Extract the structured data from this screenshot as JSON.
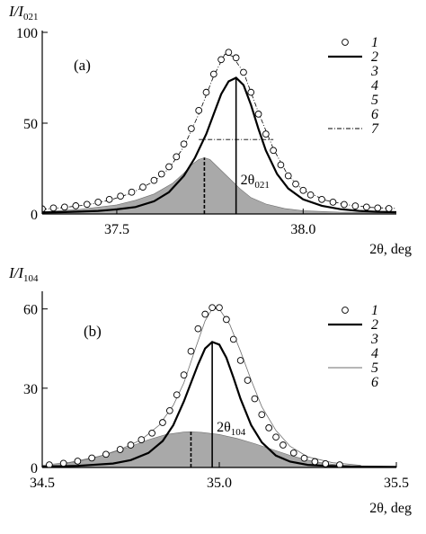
{
  "colors": {
    "line": "#000000",
    "fill": "#a9a9a9",
    "thin": "#6e6e6e",
    "background": "#ffffff"
  },
  "chart_data": [
    {
      "type": "line",
      "panel_label": "(a)",
      "ylabel_main": "I/I",
      "ylabel_sub": "021",
      "xlabel": "2θ, deg",
      "xlim": [
        37.3,
        38.25
      ],
      "ylim": [
        0,
        100
      ],
      "x_ticks": [
        37.5,
        38.0
      ],
      "x_tick_labels": [
        "37.5",
        "38.0"
      ],
      "y_ticks": [
        0,
        50,
        100
      ],
      "y_tick_labels": [
        "0",
        "50",
        "100"
      ],
      "annotation_main": "2θ",
      "annotation_sub": "021",
      "legend": [
        "1",
        "2",
        "3",
        "4",
        "5",
        "6",
        "7"
      ],
      "fwhm_level": 41,
      "fwhm_x": [
        37.72,
        37.92
      ],
      "peak_line_x": 37.82,
      "peak_line_y": 75,
      "dashed_line_x": 37.735,
      "dashed_line_y": 31,
      "series": [
        {
          "name": "1",
          "x": [
            37.3,
            37.33,
            37.36,
            37.39,
            37.42,
            37.45,
            37.48,
            37.51,
            37.54,
            37.57,
            37.6,
            37.62,
            37.64,
            37.66,
            37.68,
            37.7,
            37.72,
            37.74,
            37.76,
            37.78,
            37.8,
            37.82,
            37.84,
            37.86,
            37.88,
            37.9,
            37.92,
            37.94,
            37.96,
            37.98,
            38.0,
            38.02,
            38.05,
            38.08,
            38.11,
            38.14,
            38.17,
            38.2,
            38.23
          ],
          "values": [
            2.8,
            3.3,
            3.8,
            4.5,
            5.3,
            6.5,
            8.0,
            9.8,
            12.0,
            14.8,
            18.5,
            22.0,
            26.0,
            31.5,
            38.5,
            47.0,
            57.0,
            67.0,
            77.0,
            85.0,
            89.0,
            86.0,
            78.0,
            67.0,
            55.0,
            44.0,
            35.0,
            27.0,
            21.0,
            16.5,
            13.0,
            10.5,
            8.0,
            6.5,
            5.2,
            4.4,
            3.8,
            3.3,
            3.0
          ]
        },
        {
          "name": "2",
          "x": [
            37.3,
            37.35,
            37.4,
            37.45,
            37.5,
            37.55,
            37.6,
            37.64,
            37.68,
            37.71,
            37.74,
            37.76,
            37.78,
            37.8,
            37.82,
            37.84,
            37.86,
            37.88,
            37.9,
            37.93,
            37.96,
            38.0,
            38.05,
            38.1,
            38.15,
            38.2,
            38.25
          ],
          "values": [
            0.8,
            1.0,
            1.3,
            1.7,
            2.5,
            3.8,
            7.0,
            12.0,
            21.0,
            31.0,
            44.0,
            55.0,
            66.0,
            73.0,
            75.0,
            71.0,
            60.0,
            47.0,
            35.0,
            22.0,
            14.0,
            8.0,
            4.5,
            2.6,
            1.7,
            1.2,
            1.0
          ]
        },
        {
          "name": "3",
          "x": [
            37.3,
            37.4,
            37.5,
            37.55,
            37.6,
            37.65,
            37.68,
            37.7,
            37.72,
            37.735,
            37.75,
            37.77,
            37.8,
            37.83,
            37.86,
            37.9,
            37.95,
            38.0,
            38.1,
            38.25
          ],
          "values": [
            1.2,
            2.5,
            5.0,
            7.5,
            11.0,
            17.0,
            22.5,
            27.0,
            30.0,
            31.0,
            30.0,
            26.0,
            20.0,
            14.0,
            9.0,
            5.5,
            3.0,
            1.8,
            1.0,
            0.6
          ]
        },
        {
          "name": "7",
          "x": [
            37.3,
            37.36,
            37.42,
            37.48,
            37.54,
            37.6,
            37.64,
            37.68,
            37.72,
            37.76,
            37.79,
            37.81,
            37.84,
            37.88,
            37.92,
            37.96,
            38.0,
            38.06,
            38.12,
            38.18,
            38.25
          ],
          "values": [
            2.5,
            3.6,
            5.0,
            7.5,
            11.5,
            18.0,
            25.0,
            37.0,
            55.0,
            76.0,
            88.0,
            87.0,
            78.0,
            56.0,
            36.0,
            21.0,
            13.0,
            7.5,
            5.0,
            3.6,
            3.0
          ]
        }
      ]
    },
    {
      "type": "line",
      "panel_label": "(b)",
      "ylabel_main": "I/I",
      "ylabel_sub": "104",
      "xlabel": "2θ, deg",
      "xlim": [
        34.5,
        35.5
      ],
      "ylim": [
        0,
        66
      ],
      "x_ticks": [
        34.5,
        35.0,
        35.5
      ],
      "x_tick_labels": [
        "34.5",
        "35.0",
        "35.5"
      ],
      "y_ticks": [
        0,
        30,
        60
      ],
      "y_tick_labels": [
        "0",
        "30",
        "60"
      ],
      "annotation_main": "2θ",
      "annotation_sub": "104",
      "legend": [
        "1",
        "2",
        "3",
        "4",
        "5",
        "6"
      ],
      "peak_line_x": 34.98,
      "peak_line_y": 47.5,
      "dashed_line_x": 34.92,
      "dashed_line_y": 13.5,
      "series": [
        {
          "name": "1",
          "x": [
            34.52,
            34.56,
            34.6,
            34.64,
            34.68,
            34.72,
            34.75,
            34.78,
            34.81,
            34.84,
            34.86,
            34.88,
            34.9,
            34.92,
            34.94,
            34.96,
            34.98,
            35.0,
            35.02,
            35.04,
            35.06,
            35.08,
            35.1,
            35.12,
            35.14,
            35.16,
            35.18,
            35.21,
            35.24,
            35.27,
            35.3,
            35.34
          ],
          "values": [
            1.0,
            1.6,
            2.4,
            3.6,
            5.0,
            6.8,
            8.5,
            10.5,
            13.0,
            17.0,
            21.5,
            27.5,
            35.0,
            44.0,
            52.5,
            58.0,
            60.5,
            60.5,
            56.0,
            48.5,
            40.5,
            33.0,
            26.0,
            20.0,
            15.0,
            11.5,
            8.5,
            5.5,
            3.5,
            2.2,
            1.4,
            1.0
          ]
        },
        {
          "name": "2",
          "x": [
            34.5,
            34.6,
            34.7,
            34.75,
            34.8,
            34.84,
            34.87,
            34.9,
            34.92,
            34.94,
            34.96,
            34.98,
            35.0,
            35.02,
            35.04,
            35.06,
            35.09,
            35.12,
            35.16,
            35.2,
            35.25,
            35.3,
            35.4,
            35.5
          ],
          "values": [
            0.3,
            0.6,
            1.5,
            2.8,
            5.5,
            10.0,
            16.0,
            25.0,
            32.0,
            39.0,
            45.0,
            47.5,
            46.5,
            41.5,
            34.0,
            26.0,
            16.0,
            9.5,
            4.5,
            2.2,
            1.0,
            0.6,
            0.3,
            0.2
          ]
        },
        {
          "name": "3",
          "x": [
            34.5,
            34.55,
            34.6,
            34.65,
            34.7,
            34.75,
            34.8,
            34.85,
            34.9,
            34.92,
            34.95,
            35.0,
            35.05,
            35.1,
            35.15,
            35.2,
            35.25,
            35.3,
            35.35,
            35.4
          ],
          "values": [
            0.5,
            1.2,
            2.2,
            3.8,
            5.8,
            8.0,
            10.5,
            12.5,
            13.4,
            13.5,
            13.3,
            12.5,
            11.0,
            9.0,
            6.8,
            4.6,
            2.8,
            1.5,
            0.8,
            0.3
          ]
        },
        {
          "name": "5",
          "x": [
            34.5,
            34.58,
            34.66,
            34.72,
            34.78,
            34.83,
            34.87,
            34.9,
            34.93,
            34.96,
            34.98,
            35.0,
            35.03,
            35.06,
            35.09,
            35.12,
            35.16,
            35.2,
            35.25,
            35.32,
            35.4
          ],
          "values": [
            0.8,
            2.0,
            4.2,
            6.8,
            10.5,
            16.0,
            23.5,
            32.0,
            44.0,
            55.5,
            60.0,
            60.0,
            54.0,
            44.0,
            33.0,
            23.0,
            14.0,
            8.0,
            4.0,
            1.8,
            0.8
          ]
        }
      ]
    }
  ]
}
